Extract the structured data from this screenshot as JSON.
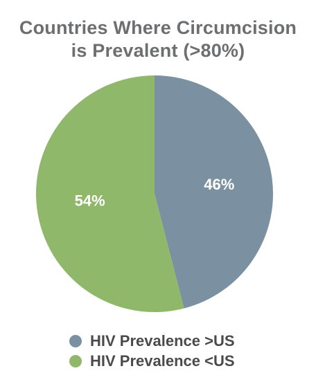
{
  "chart_data": {
    "type": "pie",
    "title": [
      "Countries Where Circumcision",
      "is Prevalent (>80%)"
    ],
    "slices": [
      {
        "name": "HIV Prevalence >US",
        "value": 46,
        "label": "46%",
        "color": "#7b91a1"
      },
      {
        "name": "HIV Prevalence <US",
        "value": 54,
        "label": "54%",
        "color": "#8fb86b"
      }
    ],
    "legend_position": "bottom"
  }
}
